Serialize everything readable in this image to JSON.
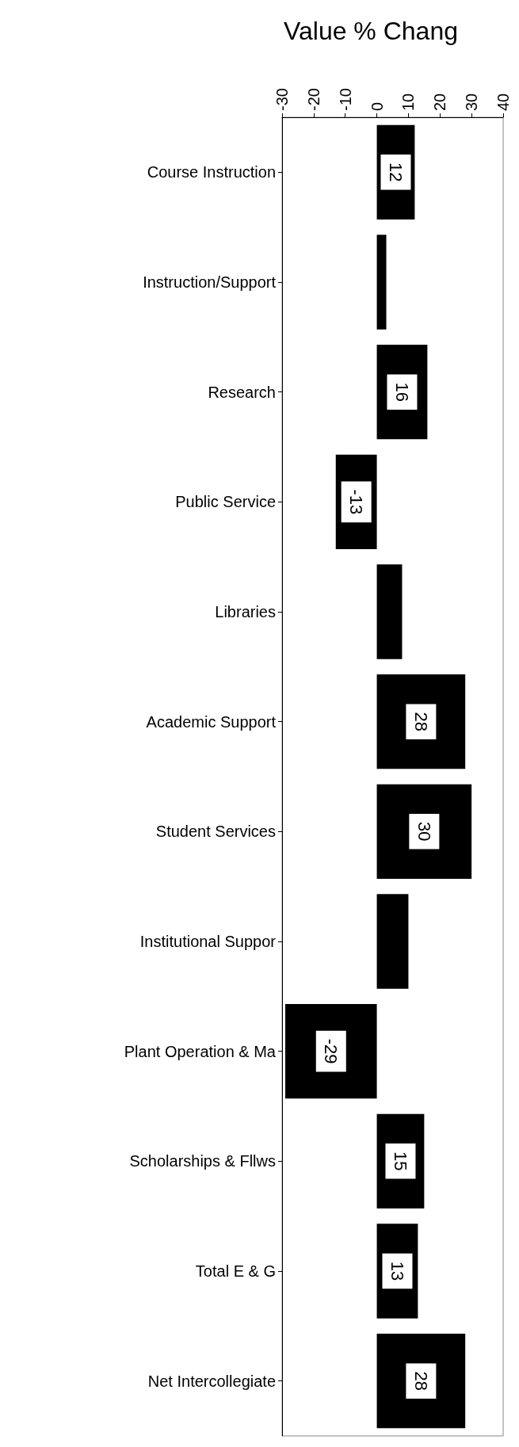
{
  "chart_data": {
    "type": "bar",
    "orientation": "horizontal",
    "title": "Value % Chang",
    "categories": [
      "Course Instruction",
      "Instruction/Support",
      "Research",
      "Public Service",
      "Libraries",
      "Academic Support",
      "Student Services",
      "Institutional Suppor",
      "Plant Operation & Ma",
      "Scholarships & Fllws",
      "Total E & G",
      "Net Intercollegiate"
    ],
    "values": [
      12,
      3,
      16,
      -13,
      8,
      28,
      30,
      10,
      -29,
      15,
      13,
      28
    ],
    "value_labels": [
      "12",
      null,
      "16",
      "-13",
      null,
      "28",
      "30",
      null,
      "-29",
      "15",
      "13",
      "28"
    ],
    "color": "#000000",
    "xlim": [
      -30,
      40
    ],
    "xticks": [
      -30,
      -20,
      -10,
      0,
      10,
      20,
      30,
      40
    ],
    "grid": false
  }
}
